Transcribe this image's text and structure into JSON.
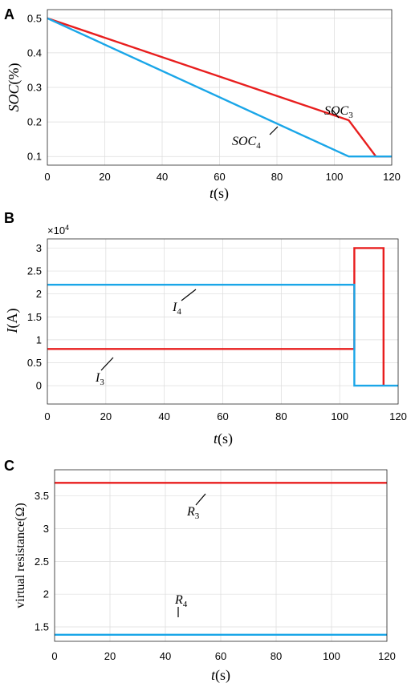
{
  "chart_data": [
    {
      "panel": "A",
      "type": "line",
      "xlabel_var": "t",
      "xlabel_unit": "(s)",
      "ylabel_var": "SOC",
      "ylabel_unit": "(%)",
      "xlim": [
        0,
        120
      ],
      "ylim": [
        0.075,
        0.525
      ],
      "xticks": [
        "0",
        "20",
        "40",
        "60",
        "80",
        "100",
        "120"
      ],
      "yticks": [
        "0.1",
        "0.2",
        "0.3",
        "0.4",
        "0.5"
      ],
      "yticks_values": [
        0.1,
        0.2,
        0.3,
        0.4,
        0.5
      ],
      "grid": true,
      "series": [
        {
          "name": "SOC3",
          "label_base": "SOC",
          "label_sub": "3",
          "color": "#e81e1e",
          "x": [
            0,
            105,
            114.5,
            120
          ],
          "y": [
            0.5,
            0.205,
            0.1,
            0.1
          ]
        },
        {
          "name": "SOC4",
          "label_base": "SOC",
          "label_sub": "4",
          "color": "#1aa6e8",
          "x": [
            0,
            105,
            120
          ],
          "y": [
            0.5,
            0.1,
            0.1
          ]
        }
      ]
    },
    {
      "panel": "B",
      "type": "line",
      "xlabel_var": "t",
      "xlabel_unit": "(s)",
      "ylabel_var": "I",
      "ylabel_unit": "(A)",
      "multiplier": "×10",
      "multiplier_exp": "4",
      "xlim": [
        0,
        120
      ],
      "ylim": [
        -0.4,
        3.2
      ],
      "xticks": [
        "0",
        "20",
        "40",
        "60",
        "80",
        "100",
        "120"
      ],
      "yticks": [
        "0",
        "0.5",
        "1",
        "1.5",
        "2",
        "2.5",
        "3"
      ],
      "yticks_values": [
        0,
        0.5,
        1,
        1.5,
        2,
        2.5,
        3
      ],
      "grid": true,
      "series": [
        {
          "name": "I3",
          "label_base": "I",
          "label_sub": "3",
          "color": "#e81e1e",
          "x": [
            0,
            105,
            105,
            115,
            115
          ],
          "y": [
            0.8,
            0.8,
            3.0,
            3.0,
            0
          ]
        },
        {
          "name": "I4",
          "label_base": "I",
          "label_sub": "4",
          "color": "#1aa6e8",
          "x": [
            0,
            105,
            105,
            120
          ],
          "y": [
            2.2,
            2.2,
            0,
            0
          ]
        }
      ]
    },
    {
      "panel": "C",
      "type": "line",
      "xlabel_var": "t",
      "xlabel_unit": "(s)",
      "ylabel_text": "virtual resistance(Ω)",
      "xlim": [
        0,
        120
      ],
      "ylim": [
        1.28,
        3.9
      ],
      "xticks": [
        "0",
        "20",
        "40",
        "60",
        "80",
        "100",
        "120"
      ],
      "yticks": [
        "1.5",
        "2",
        "2.5",
        "3",
        "3.5"
      ],
      "yticks_values": [
        1.5,
        2,
        2.5,
        3,
        3.5
      ],
      "grid": true,
      "series": [
        {
          "name": "R3",
          "label_base": "R",
          "label_sub": "3",
          "color": "#e81e1e",
          "x": [
            0,
            120
          ],
          "y": [
            3.7,
            3.7
          ]
        },
        {
          "name": "R4",
          "label_base": "R",
          "label_sub": "4",
          "color": "#1aa6e8",
          "x": [
            0,
            120
          ],
          "y": [
            1.38,
            1.38
          ]
        }
      ]
    }
  ]
}
